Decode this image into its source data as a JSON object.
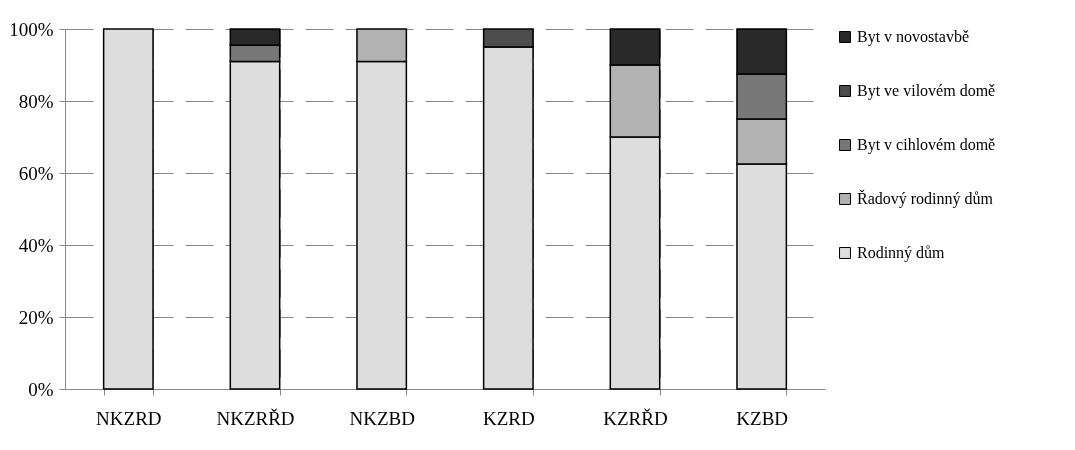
{
  "chart_data": {
    "type": "bar",
    "stacked": true,
    "categories": [
      "NKZRD",
      "NKZRŘD",
      "NKZBD",
      "KZRD",
      "KZRŘD",
      "KZBD"
    ],
    "series": [
      {
        "name": "Rodinný dům",
        "color": "#dddddd",
        "values": [
          100,
          91,
          91,
          95,
          70,
          62.5
        ]
      },
      {
        "name": "Řadový rodinný dům",
        "color": "#b2b2b2",
        "values": [
          0,
          0,
          9,
          0,
          20,
          12.5
        ]
      },
      {
        "name": "Byt v cihlovém domě",
        "color": "#777777",
        "values": [
          0,
          4.5,
          0,
          0,
          0,
          12.5
        ]
      },
      {
        "name": "Byt ve vilovém domě",
        "color": "#4d4d4d",
        "values": [
          0,
          0,
          0,
          5,
          0,
          0
        ]
      },
      {
        "name": "Byt v novostavbě",
        "color": "#292929",
        "values": [
          0,
          4.5,
          0,
          0,
          10,
          12.5
        ]
      }
    ],
    "ylim": [
      0,
      100
    ],
    "yticks": [
      {
        "value": 0,
        "label": "0%"
      },
      {
        "value": 20,
        "label": "20%"
      },
      {
        "value": 40,
        "label": "40%"
      },
      {
        "value": 60,
        "label": "60%"
      },
      {
        "value": 80,
        "label": "80%"
      },
      {
        "value": 100,
        "label": "100%"
      }
    ],
    "grid": true,
    "legend": "right"
  }
}
